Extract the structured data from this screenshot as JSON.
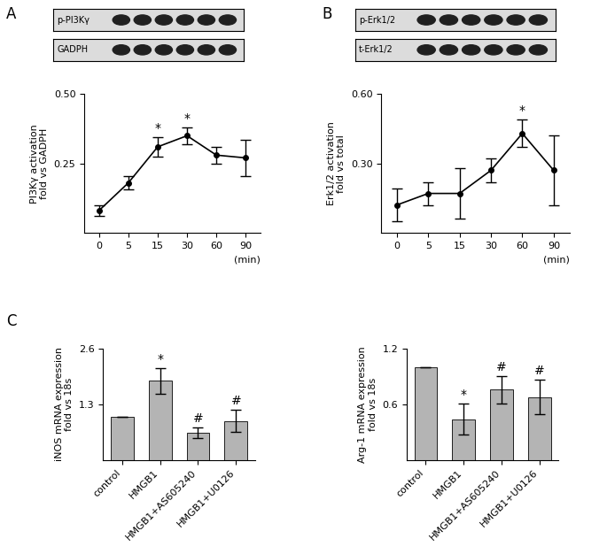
{
  "panels": [
    "A",
    "B",
    "C"
  ],
  "chart_data": [
    {
      "type": "line",
      "panel": "A",
      "blots": [
        "p-PI3Kγ",
        "GADPH"
      ],
      "categories": [
        "0",
        "5",
        "15",
        "30",
        "60",
        "90"
      ],
      "values": [
        0.08,
        0.18,
        0.31,
        0.35,
        0.28,
        0.27
      ],
      "errors": [
        0.02,
        0.025,
        0.035,
        0.03,
        0.03,
        0.065
      ],
      "annotations": [
        null,
        null,
        "*",
        "*",
        null,
        null
      ],
      "x_label": "(min)",
      "y_label": "PI3Kγ activation\nfold vs GADPH",
      "ylim": [
        0,
        0.5
      ],
      "yticks": [
        0.25,
        {
          "value": 0.5,
          "label": "0.50"
        }
      ],
      "color": "#000000",
      "marker": "o",
      "grid": false
    },
    {
      "type": "line",
      "panel": "B",
      "blots": [
        "p-Erk1/2",
        "t-Erk1/2"
      ],
      "categories": [
        "0",
        "5",
        "15",
        "30",
        "60",
        "90"
      ],
      "values": [
        0.12,
        0.17,
        0.17,
        0.27,
        0.43,
        0.27
      ],
      "errors": [
        0.07,
        0.05,
        0.11,
        0.05,
        0.06,
        0.15
      ],
      "annotations": [
        null,
        null,
        null,
        null,
        "*",
        null
      ],
      "x_label": "(min)",
      "y_label": "Erk1/2 activation\nfold vs total",
      "ylim": [
        0,
        0.6
      ],
      "yticks": [
        {
          "value": 0.3,
          "label": "0.30"
        },
        {
          "value": 0.6,
          "label": "0.60"
        }
      ],
      "color": "#000000",
      "marker": "o",
      "grid": false
    },
    {
      "type": "bar",
      "panel": "C",
      "categories": [
        "control",
        "HMGB1",
        "HMGB1+AS605240",
        "HMGB1+U0126"
      ],
      "values": [
        1.0,
        1.85,
        0.64,
        0.91
      ],
      "errors": [
        0,
        0.3,
        0.13,
        0.26
      ],
      "annotations": [
        null,
        "*",
        "#",
        "#"
      ],
      "y_label": "iNOS mRNA expression\nfold vs 18s",
      "ylim": [
        0,
        2.6
      ],
      "yticks": [
        1.3,
        2.6
      ],
      "color": "#b4b4b4",
      "grid": false
    },
    {
      "type": "bar",
      "categories": [
        "control",
        "HMGB1",
        "HMGB1+AS605240",
        "HMGB1+U0126"
      ],
      "values": [
        1.0,
        0.44,
        0.76,
        0.68
      ],
      "errors": [
        0,
        0.17,
        0.15,
        0.19
      ],
      "annotations": [
        null,
        "*",
        "#",
        "#"
      ],
      "y_label": "Arg-1 mRNA expression\nfold vs 18s",
      "ylim": [
        0,
        1.2
      ],
      "yticks": [
        0.6,
        1.2
      ],
      "color": "#b4b4b4",
      "grid": false
    }
  ]
}
